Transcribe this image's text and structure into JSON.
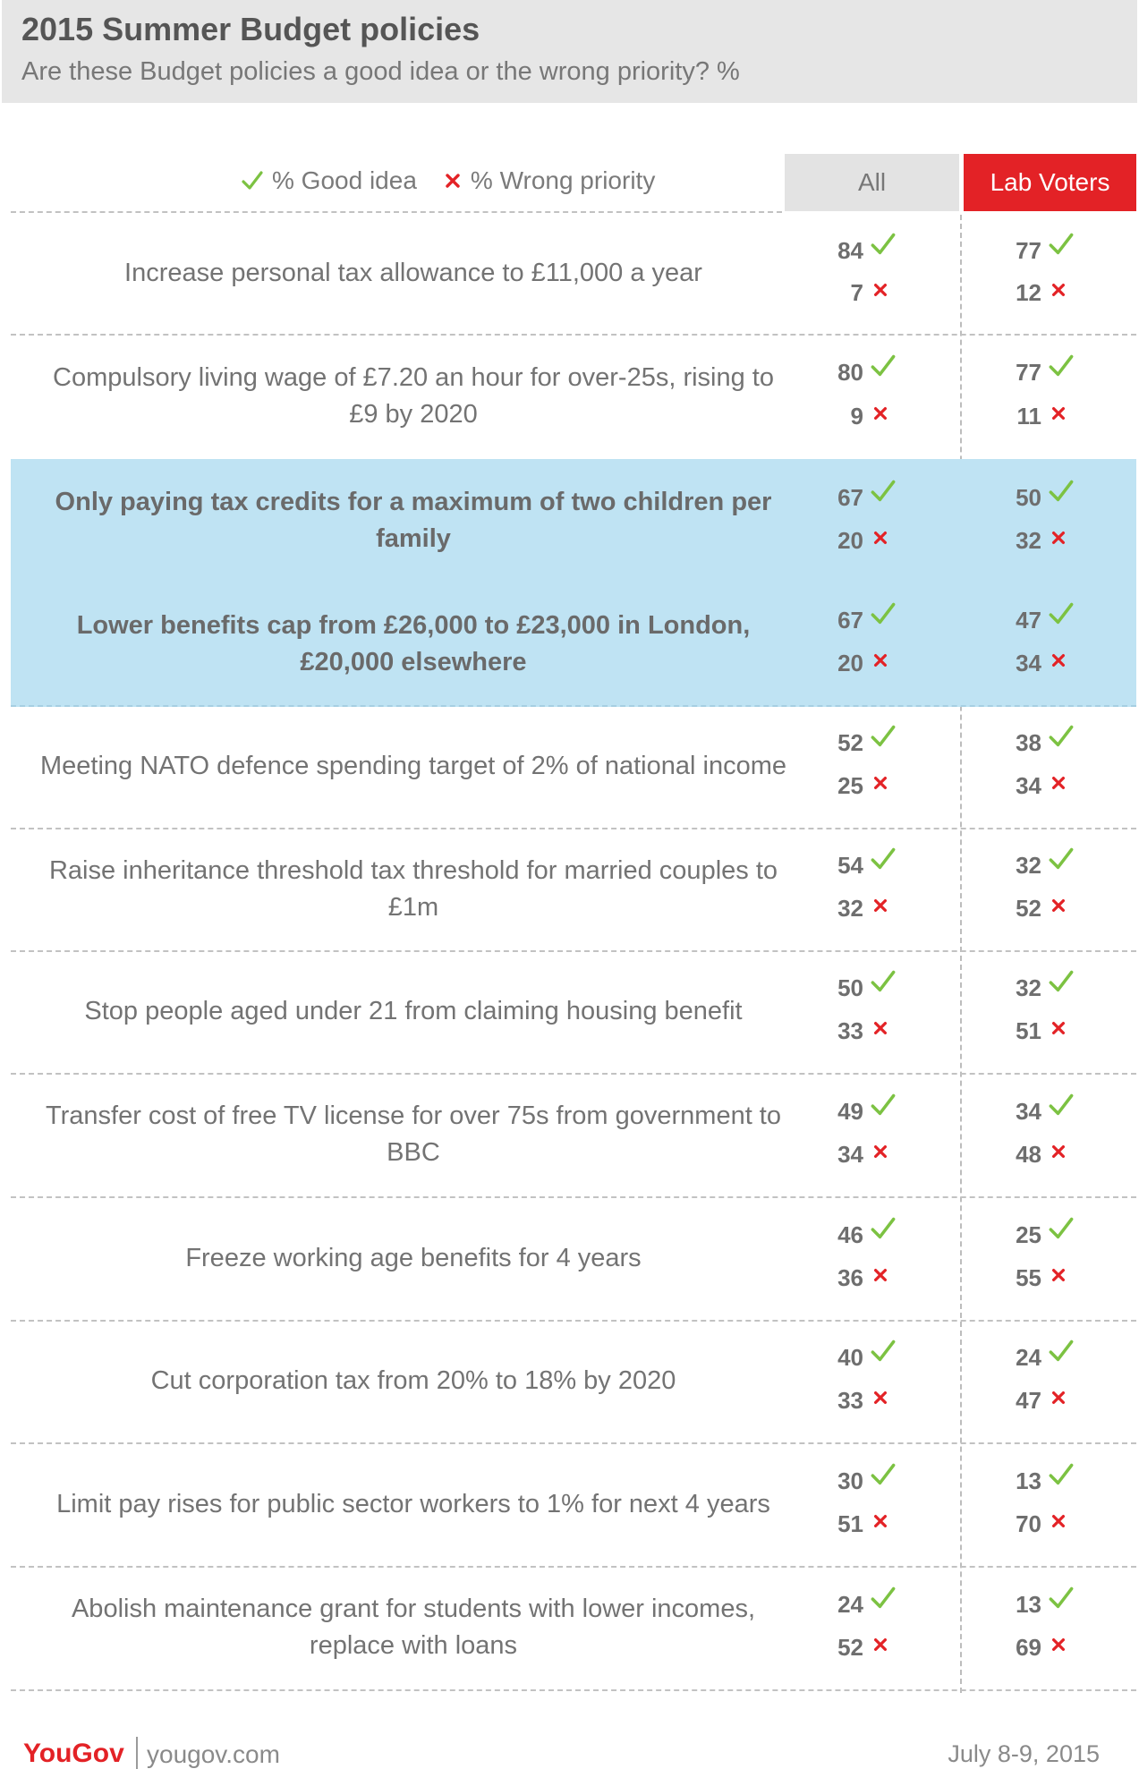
{
  "header": {
    "title": "2015 Summer Budget policies",
    "subtitle": "Are these Budget policies a good idea or the wrong priority? %"
  },
  "legend": {
    "good_label": "% Good idea",
    "wrong_label": "% Wrong  priority"
  },
  "columns": {
    "all_label": "All",
    "lab_label": "Lab Voters"
  },
  "colors": {
    "tick": "#7cc242",
    "cross": "#e32226",
    "lab_header": "#e32226",
    "highlight": "#bfe3f3"
  },
  "chart_data": {
    "type": "table",
    "title": "2015 Summer Budget policies",
    "subtitle": "Are these Budget policies a good idea or the wrong priority? %",
    "columns": [
      "All",
      "Lab Voters"
    ],
    "series_names": [
      "% Good idea",
      "% Wrong  priority"
    ],
    "rows": [
      {
        "policy": "Increase personal tax allowance to £11,000 a year",
        "all_good": 84,
        "all_wrong": 7,
        "lab_good": 77,
        "lab_wrong": 12,
        "highlight": false
      },
      {
        "policy": "Compulsory living wage of £7.20 an hour for over-25s, rising to £9 by 2020",
        "all_good": 80,
        "all_wrong": 9,
        "lab_good": 77,
        "lab_wrong": 11,
        "highlight": false
      },
      {
        "policy": "Only paying tax credits for a maximum of two children per family",
        "all_good": 67,
        "all_wrong": 20,
        "lab_good": 50,
        "lab_wrong": 32,
        "highlight": true
      },
      {
        "policy": "Lower benefits cap from £26,000 to £23,000 in London, £20,000 elsewhere",
        "all_good": 67,
        "all_wrong": 20,
        "lab_good": 47,
        "lab_wrong": 34,
        "highlight": true
      },
      {
        "policy": "Meeting NATO defence spending target of 2% of national income",
        "all_good": 52,
        "all_wrong": 25,
        "lab_good": 38,
        "lab_wrong": 34,
        "highlight": false
      },
      {
        "policy": "Raise inheritance threshold tax threshold for married couples to £1m",
        "all_good": 54,
        "all_wrong": 32,
        "lab_good": 32,
        "lab_wrong": 52,
        "highlight": false
      },
      {
        "policy": "Stop people aged under 21 from claiming housing benefit",
        "all_good": 50,
        "all_wrong": 33,
        "lab_good": 32,
        "lab_wrong": 51,
        "highlight": false
      },
      {
        "policy": "Transfer cost of free TV license for over 75s from government to BBC",
        "all_good": 49,
        "all_wrong": 34,
        "lab_good": 34,
        "lab_wrong": 48,
        "highlight": false
      },
      {
        "policy": "Freeze working age benefits for 4 years",
        "all_good": 46,
        "all_wrong": 36,
        "lab_good": 25,
        "lab_wrong": 55,
        "highlight": false
      },
      {
        "policy": "Cut corporation tax from 20% to 18% by 2020",
        "all_good": 40,
        "all_wrong": 33,
        "lab_good": 24,
        "lab_wrong": 47,
        "highlight": false
      },
      {
        "policy": "Limit pay rises for public sector workers to 1% for next 4 years",
        "all_good": 30,
        "all_wrong": 51,
        "lab_good": 13,
        "lab_wrong": 70,
        "highlight": false
      },
      {
        "policy": "Abolish maintenance grant for students with lower incomes, replace with loans",
        "all_good": 24,
        "all_wrong": 52,
        "lab_good": 13,
        "lab_wrong": 69,
        "highlight": false
      }
    ]
  },
  "footer": {
    "brand": "YouGov",
    "url": "yougov.com",
    "date": "July 8-9, 2015"
  }
}
